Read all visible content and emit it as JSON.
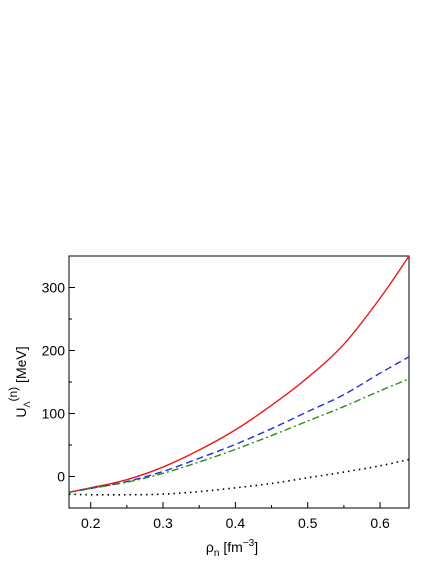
{
  "chart_data": {
    "type": "line",
    "xlabel": {
      "base": "ρ",
      "sub": "n",
      "unit_open": " [fm",
      "unit_sup": "−3",
      "unit_close": "]"
    },
    "ylabel": {
      "base": "U",
      "sub": "Λ",
      "sup": "(n)",
      "unit": " [MeV]"
    },
    "xlim": [
      0.17,
      0.64
    ],
    "ylim": [
      -50,
      350
    ],
    "x_ticks": [
      "0.2",
      "0.3",
      "0.4",
      "0.5",
      "0.6"
    ],
    "y_ticks": [
      "0",
      "100",
      "200",
      "300"
    ],
    "grid": false,
    "series": [
      {
        "color": "#e8191b",
        "style": "solid",
        "x": [
          0.17,
          0.2,
          0.25,
          0.3,
          0.35,
          0.4,
          0.45,
          0.5,
          0.55,
          0.6,
          0.64
        ],
        "y": [
          -25,
          -18,
          -5,
          15,
          42,
          74,
          113,
          157,
          210,
          283,
          350
        ]
      },
      {
        "color": "#1f2fe0",
        "style": "dashed",
        "x": [
          0.17,
          0.2,
          0.25,
          0.3,
          0.35,
          0.4,
          0.45,
          0.5,
          0.55,
          0.6,
          0.64
        ],
        "y": [
          -25,
          -19,
          -8,
          8,
          29,
          51,
          76,
          103,
          130,
          164,
          190
        ]
      },
      {
        "color": "#2e8b1a",
        "style": "dashdot",
        "x": [
          0.17,
          0.2,
          0.25,
          0.3,
          0.35,
          0.4,
          0.45,
          0.5,
          0.55,
          0.6,
          0.64
        ],
        "y": [
          -25,
          -19,
          -9,
          5,
          23,
          43,
          65,
          88,
          111,
          136,
          155
        ]
      },
      {
        "color": "#000000",
        "style": "dotted",
        "x": [
          0.17,
          0.2,
          0.25,
          0.3,
          0.35,
          0.4,
          0.45,
          0.5,
          0.55,
          0.6,
          0.64
        ],
        "y": [
          -28,
          -29,
          -29,
          -28,
          -24,
          -18,
          -11,
          -2,
          7,
          17,
          27
        ]
      }
    ]
  }
}
